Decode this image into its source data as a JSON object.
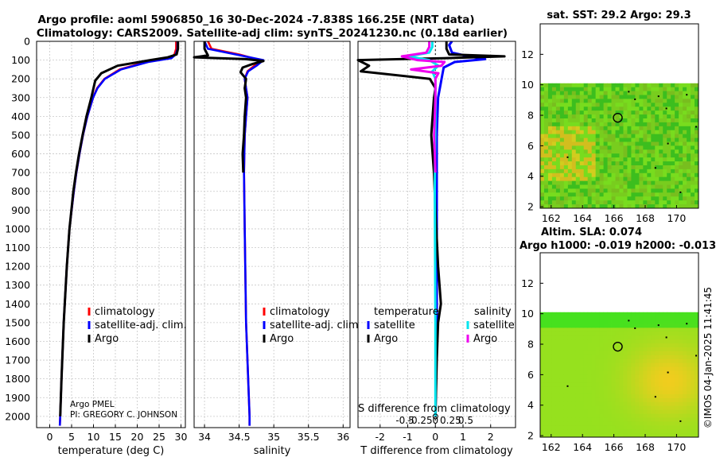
{
  "header": {
    "title_line1": "Argo profile: aoml 5906850_16 30-Dec-2024 -7.838S 166.25E (NRT data)",
    "title_line2": "Climatology: CARS2009. Satellite-adj clim: synTS_20241230.nc (0.18d earlier)"
  },
  "colors": {
    "climatology": "#ff0000",
    "satellite": "#0000ff",
    "argo": "#000000",
    "sal_satellite": "#00e5ee",
    "sal_argo": "#ee00ee"
  },
  "chart_data": [
    {
      "type": "line",
      "id": "temperature",
      "xlabel": "temperature (deg C)",
      "ylabel": "",
      "xlim": [
        -3,
        31
      ],
      "ylim": [
        2060,
        0
      ],
      "grid": true,
      "xticks": [
        0,
        5,
        10,
        15,
        20,
        25,
        30
      ],
      "yticks": [
        0,
        100,
        200,
        300,
        400,
        500,
        600,
        700,
        800,
        900,
        1000,
        1100,
        1200,
        1300,
        1400,
        1500,
        1600,
        1700,
        1800,
        1900,
        2000
      ],
      "legend": [
        "climatology",
        "satellite-adj. clim.",
        "Argo"
      ],
      "annotation": [
        "Argo PMEL",
        "PI: GREGORY C. JOHNSON"
      ],
      "series": [
        {
          "name": "climatology",
          "color": "#ff0000",
          "depth": [
            0,
            40,
            70,
            90,
            110,
            150,
            200,
            250,
            300,
            400,
            500,
            600,
            700,
            800,
            1000,
            1200,
            1500,
            1800,
            2000,
            2050
          ],
          "values": [
            28.9,
            28.9,
            28.5,
            27.5,
            22,
            16,
            12.5,
            10.8,
            9.9,
            8.6,
            7.6,
            6.8,
            6.1,
            5.5,
            4.5,
            3.9,
            3.2,
            2.7,
            2.4,
            2.3
          ]
        },
        {
          "name": "satellite-adj. clim.",
          "color": "#0000ff",
          "depth": [
            0,
            40,
            70,
            90,
            110,
            150,
            200,
            250,
            300,
            400,
            500,
            600,
            700,
            800,
            1000,
            1200,
            1500,
            1800,
            2000,
            2050
          ],
          "values": [
            29.2,
            29.2,
            28.8,
            27.8,
            22.5,
            16.3,
            12.6,
            10.9,
            9.9,
            8.6,
            7.6,
            6.8,
            6.1,
            5.5,
            4.5,
            3.9,
            3.2,
            2.7,
            2.4,
            2.3
          ]
        },
        {
          "name": "Argo",
          "color": "#000000",
          "depth": [
            0,
            40,
            70,
            85,
            100,
            130,
            170,
            210,
            250,
            300,
            400,
            500,
            600,
            700,
            800,
            1000,
            1200,
            1500,
            1800,
            2000
          ],
          "values": [
            29.3,
            29.3,
            29.0,
            27,
            23,
            15.5,
            11.8,
            10.4,
            10.0,
            9.5,
            8.4,
            7.5,
            6.7,
            6.0,
            5.4,
            4.5,
            3.9,
            3.2,
            2.7,
            2.4
          ]
        }
      ]
    },
    {
      "type": "line",
      "id": "salinity",
      "xlabel": "salinity",
      "xlim": [
        33.85,
        36.1
      ],
      "ylim": [
        2060,
        0
      ],
      "grid": true,
      "xticks": [
        34,
        34.5,
        35,
        35.5,
        36
      ],
      "xticklabels": [
        "34",
        "34.5",
        "35",
        "35.5",
        "36"
      ],
      "legend": [
        "climatology",
        "satellite-adj. clim.",
        "Argo"
      ],
      "series": [
        {
          "name": "climatology",
          "color": "#ff0000",
          "depth": [
            0,
            40,
            70,
            100,
            130,
            160,
            200,
            250,
            300,
            400,
            500,
            700,
            1000,
            1500,
            2000,
            2050
          ],
          "values": [
            34.05,
            34.1,
            34.5,
            34.8,
            34.72,
            34.62,
            34.58,
            34.6,
            34.62,
            34.6,
            34.58,
            34.57,
            34.58,
            34.6,
            34.65,
            34.65
          ]
        },
        {
          "name": "satellite-adj. clim.",
          "color": "#0000ff",
          "depth": [
            0,
            40,
            70,
            100,
            130,
            160,
            200,
            250,
            300,
            400,
            500,
            700,
            1000,
            1500,
            2000,
            2050
          ],
          "values": [
            34.0,
            34.05,
            34.45,
            34.85,
            34.75,
            34.63,
            34.58,
            34.6,
            34.62,
            34.6,
            34.58,
            34.57,
            34.58,
            34.6,
            34.65,
            34.65
          ]
        },
        {
          "name": "Argo",
          "color": "#000000",
          "depth": [
            0,
            40,
            75,
            85,
            95,
            105,
            120,
            140,
            165,
            200,
            250,
            300,
            400,
            500,
            600,
            700
          ],
          "values": [
            34.0,
            34.0,
            34.05,
            33.85,
            34.6,
            34.85,
            34.7,
            34.55,
            34.52,
            34.6,
            34.58,
            34.6,
            34.58,
            34.57,
            34.55,
            34.56
          ]
        }
      ]
    },
    {
      "type": "line",
      "id": "differences",
      "xlabel": "T difference from climatology",
      "top_axis_label": "S difference from climatology",
      "xlim": [
        -2.8,
        2.9
      ],
      "ylim": [
        2060,
        0
      ],
      "grid": true,
      "xticks": [
        -2,
        -1,
        0,
        1,
        2
      ],
      "sal_ticks": [
        -0.5,
        -0.25,
        0,
        0.25,
        0.5
      ],
      "sal_ticklabels": [
        "-0.5",
        "-0.25",
        "0",
        "0.25",
        "0.5"
      ],
      "legend_temperature_title": "temperature",
      "legend_salinity_title": "salinity",
      "legend_entries": [
        "satellite",
        "Argo",
        "satellite",
        "Argo"
      ],
      "series": [
        {
          "name": "T satellite",
          "color": "#0000ff",
          "depth": [
            0,
            20,
            60,
            80,
            95,
            110,
            140,
            180,
            220,
            300,
            500,
            800,
            1200,
            1600,
            2000
          ],
          "values": [
            0.6,
            0.5,
            0.6,
            1.2,
            1.8,
            0.7,
            0.3,
            0.25,
            0.2,
            0.1,
            0.05,
            0.05,
            0.05,
            0.05,
            0.0
          ]
        },
        {
          "name": "T Argo",
          "color": "#000000",
          "depth": [
            0,
            40,
            70,
            80,
            90,
            100,
            115,
            130,
            160,
            200,
            250,
            300,
            400,
            500,
            600,
            700,
            900,
            1200,
            1400,
            1500,
            1700,
            2000
          ],
          "values": [
            0.4,
            0.4,
            0.5,
            2.5,
            0.3,
            -2.8,
            -2.6,
            -2.4,
            -2.7,
            -0.2,
            0,
            -0.05,
            -0.1,
            -0.15,
            -0.1,
            -0.05,
            0,
            0.1,
            0.2,
            0.1,
            0.05,
            0.0
          ]
        },
        {
          "name": "S satellite",
          "color": "#00e5ee",
          "depth": [
            0,
            30,
            60,
            80,
            100,
            130,
            160,
            200,
            400,
            800,
            1500,
            2000
          ],
          "values": [
            -0.05,
            -0.05,
            -0.1,
            -0.45,
            -0.1,
            0.05,
            -0.05,
            0.0,
            0.0,
            -0.01,
            0.0,
            0.0
          ]
        },
        {
          "name": "S Argo",
          "color": "#ee00ee",
          "depth": [
            0,
            30,
            60,
            80,
            100,
            110,
            130,
            150,
            170,
            200,
            300,
            500,
            700
          ],
          "values": [
            -0.1,
            -0.1,
            -0.15,
            -0.55,
            -0.3,
            0.15,
            0.1,
            -0.4,
            0.05,
            0.0,
            0.0,
            -0.02,
            0.0
          ]
        }
      ]
    },
    {
      "type": "heatmap",
      "id": "sst_map",
      "title": "sat. SST: 29.2 Argo: 29.3",
      "xlim": [
        161.3,
        171.4
      ],
      "ylim": [
        1.9,
        14.0
      ],
      "xticks": [
        162,
        164,
        166,
        168,
        170
      ],
      "yticks": [
        2,
        4,
        6,
        8,
        10,
        12
      ],
      "data_top": 10.1,
      "argo_position": {
        "lon": 166.25,
        "lat": 7.838
      }
    },
    {
      "type": "heatmap",
      "id": "sla_map",
      "title": "Altim. SLA: 0.074",
      "subtitle": "Argo h1000: -0.019 h2000: -0.013",
      "xlim": [
        161.3,
        171.4
      ],
      "ylim": [
        1.9,
        14.0
      ],
      "xticks": [
        162,
        164,
        166,
        168,
        170
      ],
      "yticks": [
        2,
        4,
        6,
        8,
        10,
        12
      ],
      "data_top": 10.1,
      "argo_position": {
        "lon": 166.25,
        "lat": 7.838
      }
    }
  ],
  "credit": "©IMOS 04-Jan-2025 11:41:45"
}
